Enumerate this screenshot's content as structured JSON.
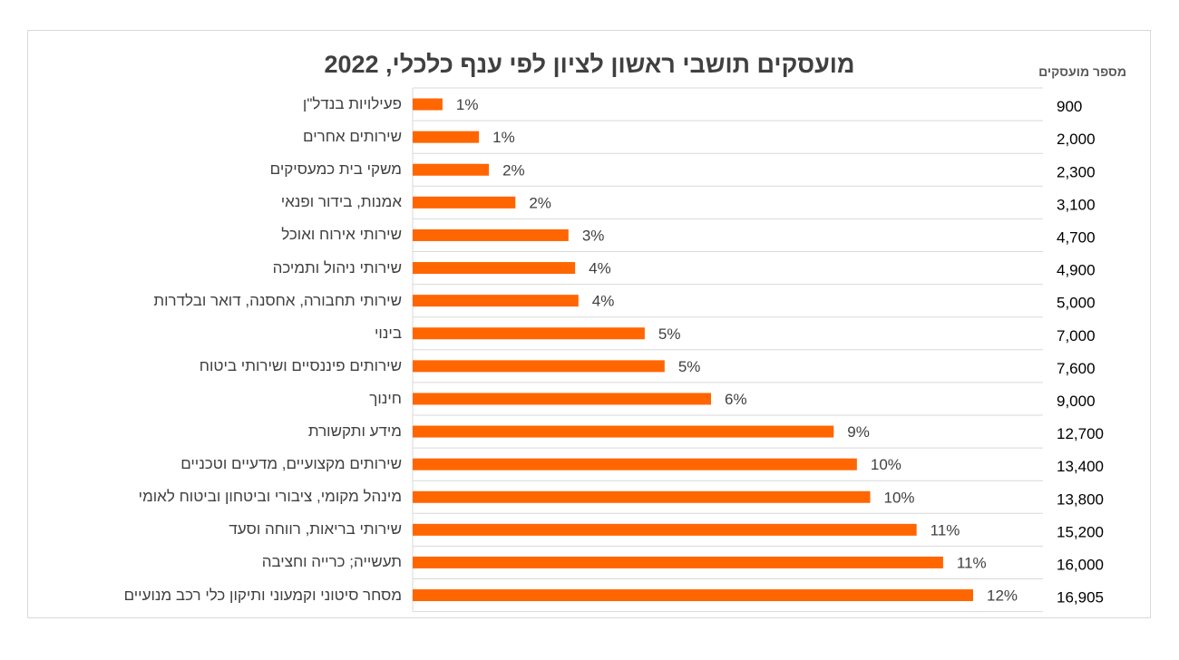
{
  "chart_data": {
    "type": "bar",
    "orientation": "horizontal",
    "title": "מועסקים תושבי ראשון לציון לפי ענף כלכלי, 2022",
    "value_column_header": "מספר מועסקים",
    "bar_color": "#ff6600",
    "categories": [
      "פעילויות בנדל\"ן",
      "שירותים אחרים",
      "משקי בית כמעסיקים",
      "אמנות, בידור ופנאי",
      "שירותי אירוח ואוכל",
      "שירותי ניהול ותמיכה",
      "שירותי תחבורה, אחסנה, דואר ובלדרות",
      "בינוי",
      "שירותים פיננסיים ושירותי ביטוח",
      "חינוך",
      "מידע ותקשורת",
      "שירותים מקצועיים, מדעיים וטכניים",
      "מינהל מקומי, ציבורי וביטחון וביטוח לאומי",
      "שירותי בריאות, רווחה וסעד",
      "תעשייה; כרייה וחציבה",
      "מסחר סיטוני וקמעוני ותיקון כלי רכב מנועיים"
    ],
    "values": [
      900,
      2000,
      2300,
      3100,
      4700,
      4900,
      5000,
      7000,
      7600,
      9000,
      12700,
      13400,
      13800,
      15200,
      16000,
      16905
    ],
    "value_labels": [
      "900",
      "2,000",
      "2,300",
      "3,100",
      "4,700",
      "4,900",
      "5,000",
      "7,000",
      "7,600",
      "9,000",
      "12,700",
      "13,400",
      "13,800",
      "15,200",
      "16,000",
      "16,905"
    ],
    "percent_labels": [
      "1%",
      "1%",
      "2%",
      "2%",
      "3%",
      "4%",
      "4%",
      "5%",
      "5%",
      "6%",
      "9%",
      "10%",
      "10%",
      "11%",
      "11%",
      "12%"
    ],
    "xlim": [
      0,
      16905
    ],
    "grid": true
  }
}
